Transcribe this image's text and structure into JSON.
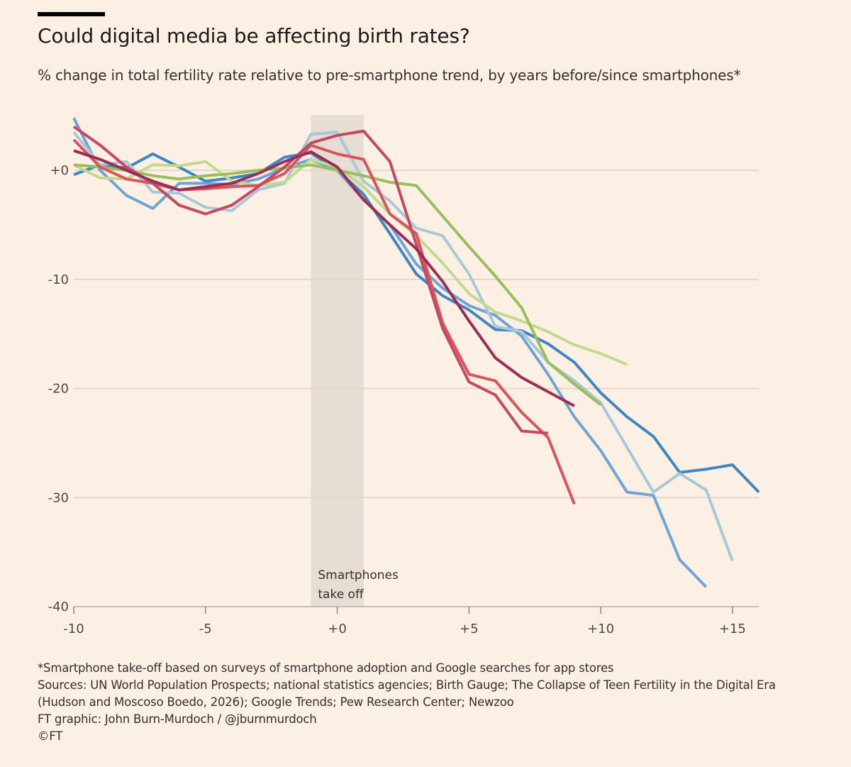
{
  "title": "Could digital media be affecting birth rates?",
  "subtitle": "% change in total fertility rate relative to pre-smartphone trend, by years before/since smartphones*",
  "footer": {
    "note": "*Smartphone take-off based on surveys of smartphone adoption and Google searches for app stores",
    "sources_line1": "Sources: UN World Population Prospects; national statistics agencies; Birth Gauge; The Collapse of Teen Fertility in the Digital Era",
    "sources_line2": "(Hudson and Moscoso Boedo, 2026); Google Trends; Pew Research Center; Newzoo",
    "credit": "FT graphic: John Burn-Murdoch / @jburnmurdoch",
    "copyright": "©FT"
  },
  "chart_data": {
    "type": "line",
    "xlim": [
      -10,
      16
    ],
    "ylim": [
      -40,
      5
    ],
    "x_ticks": [
      -10,
      -5,
      0,
      5,
      10,
      15
    ],
    "x_tick_labels": [
      "-10",
      "-5",
      "+0",
      "+5",
      "+10",
      "+15"
    ],
    "y_ticks": [
      0,
      -10,
      -20,
      -30,
      -40
    ],
    "y_tick_labels": [
      "+0",
      "-10",
      "-20",
      "-30",
      "-40"
    ],
    "grid": "horizontal",
    "shaded_band": {
      "x0": -1,
      "x1": 1,
      "label_line1": "Smartphones",
      "label_line2": "take off",
      "color": "#e6ddd4"
    },
    "series": [
      {
        "color": "#3f86c5",
        "x": [
          -10,
          -9,
          -8,
          -7,
          -6,
          -5,
          -4,
          -3,
          -2,
          -1,
          0,
          1,
          2,
          3,
          4,
          5,
          6,
          7,
          8,
          9,
          10,
          11,
          12,
          13,
          14,
          15,
          16
        ],
        "y": [
          -0.4,
          0.5,
          0.2,
          1.5,
          0.3,
          -1,
          -0.7,
          -0.3,
          1.2,
          1.6,
          0,
          -2.2,
          -5.8,
          -9.5,
          -11.5,
          -12.8,
          -14.6,
          -14.7,
          -15.9,
          -17.6,
          -20.4,
          -22.6,
          -24.4,
          -27.7,
          -27.4,
          -27.0,
          -29.5
        ]
      },
      {
        "color": "#6ea5d6",
        "x": [
          -10,
          -9,
          -8,
          -7,
          -6,
          -5,
          -4,
          -3,
          -2,
          -1,
          0,
          1,
          2,
          3,
          4,
          5,
          6,
          7,
          8,
          9,
          10,
          11,
          12,
          13,
          14
        ],
        "y": [
          4.8,
          0,
          -2.3,
          -3.5,
          -1.2,
          -1.2,
          -1.3,
          -0.8,
          0.2,
          1,
          0,
          -2.7,
          -5.0,
          -8.6,
          -10.8,
          -12.4,
          -13.3,
          -15.2,
          -18.7,
          -22.6,
          -25.7,
          -29.5,
          -29.8,
          -35.7,
          -38.2
        ]
      },
      {
        "color": "#a8c8d8",
        "x": [
          -10,
          -9,
          -8,
          -7,
          -6,
          -5,
          -4,
          -3,
          -2,
          -1,
          0,
          1,
          2,
          3,
          4,
          5,
          6,
          7,
          8,
          9,
          10,
          11,
          12,
          13,
          14,
          15
        ],
        "y": [
          3.5,
          0.5,
          0.8,
          -2.0,
          -2.1,
          -3.4,
          -3.7,
          -1.8,
          -1.2,
          3.3,
          3.5,
          -1.0,
          -2.8,
          -5.3,
          -6.0,
          -9.5,
          -14.3,
          -14.8,
          -17.6,
          -19.3,
          -21.3,
          -25.4,
          -29.5,
          -27.8,
          -29.3,
          -35.8
        ]
      },
      {
        "color": "#c4d98e",
        "x": [
          -10,
          -9,
          -8,
          -7,
          -6,
          -5,
          -4,
          -3,
          -2,
          -1,
          0,
          1,
          2,
          3,
          4,
          5,
          6,
          7,
          8,
          9,
          10,
          11
        ],
        "y": [
          0.5,
          -0.7,
          -0.8,
          0.5,
          0.4,
          0.8,
          -1.0,
          -1.4,
          -1.1,
          1.0,
          0.3,
          -1.5,
          -4.0,
          -6.0,
          -8.5,
          -11.3,
          -13.0,
          -13.8,
          -14.8,
          -16.0,
          -16.8,
          -17.8
        ]
      },
      {
        "color": "#9abe5a",
        "x": [
          -10,
          -9,
          -8,
          -7,
          -6,
          -5,
          -4,
          -3,
          -2,
          -1,
          0,
          1,
          2,
          3,
          4,
          5,
          6,
          7,
          8,
          9,
          10
        ],
        "y": [
          0.5,
          0.3,
          0,
          -0.5,
          -0.8,
          -0.5,
          -0.3,
          0,
          0.2,
          0.5,
          0,
          -0.5,
          -1.1,
          -1.4,
          -4.2,
          -7.0,
          -9.7,
          -12.6,
          -17.6,
          -19.6,
          -21.5
        ]
      },
      {
        "color": "#d9545c",
        "x": [
          -10,
          -9,
          -8,
          -7,
          -6,
          -5,
          -4,
          -3,
          -2,
          -1,
          0,
          1,
          2,
          3,
          4,
          5,
          6,
          7,
          8,
          9
        ],
        "y": [
          2.8,
          0.3,
          -0.8,
          -1.2,
          -1.8,
          -1.7,
          -1.5,
          -1.4,
          -0.3,
          2.3,
          1.5,
          1.0,
          -4.0,
          -5.8,
          -14.0,
          -18.7,
          -19.3,
          -22.2,
          -24.5,
          -30.6
        ]
      },
      {
        "color": "#c34a60",
        "x": [
          -10,
          -9,
          -8,
          -7,
          -6,
          -5,
          -4,
          -3,
          -2,
          -1,
          0,
          1,
          2,
          3,
          4,
          5,
          6,
          7,
          8
        ],
        "y": [
          4.0,
          2.3,
          0.3,
          -1.2,
          -3.2,
          -4.0,
          -3.2,
          -1.5,
          0.3,
          2.5,
          3.2,
          3.6,
          0.8,
          -6.8,
          -14.5,
          -19.4,
          -20.6,
          -23.9,
          -24.1
        ]
      },
      {
        "color": "#9c2d55",
        "x": [
          -10,
          -9,
          -8,
          -7,
          -6,
          -5,
          -4,
          -3,
          -2,
          -1,
          0,
          1,
          2,
          3,
          4,
          5,
          6,
          7,
          8,
          9
        ],
        "y": [
          1.8,
          1.0,
          0,
          -1.0,
          -1.8,
          -1.5,
          -1.2,
          -0.3,
          0.8,
          1.7,
          0.3,
          -2.7,
          -5.0,
          -7.2,
          -10.2,
          -13.8,
          -17.2,
          -19.0,
          -20.3,
          -21.6
        ]
      }
    ]
  }
}
